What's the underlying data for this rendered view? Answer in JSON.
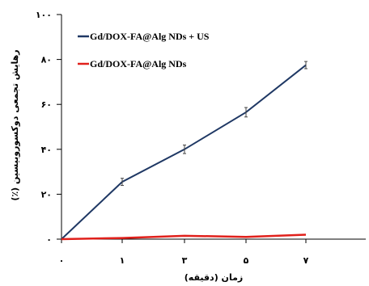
{
  "chart_data": {
    "type": "line",
    "xlabel": "زمان (دقیقه)",
    "ylabel": "رهایش تجمعی دوکسوروبیسین (٪)",
    "x_categories": [
      "۰",
      "۱",
      "۳",
      "۵",
      "۷"
    ],
    "ylim": [
      0,
      100
    ],
    "y_ticks": [
      0,
      20,
      40,
      60,
      80,
      100
    ],
    "y_tick_labels": [
      "۰",
      "۲۰",
      "۴۰",
      "۶۰",
      "۸۰",
      "۱۰۰"
    ],
    "grid": false,
    "legend_position": "top-left",
    "series": [
      {
        "name": "Gd/DOX-FA@Alg NDs + US",
        "color": "#1f3864",
        "values": [
          0,
          25.5,
          40,
          56.5,
          77.5
        ],
        "errors": [
          0,
          1.6,
          1.9,
          2.1,
          1.6
        ]
      },
      {
        "name": "Gd/DOX-FA@Alg NDs",
        "color": "#e0201b",
        "values": [
          0,
          0.5,
          1.5,
          1,
          2
        ],
        "errors": [
          0,
          0,
          0,
          0,
          0
        ]
      }
    ]
  }
}
